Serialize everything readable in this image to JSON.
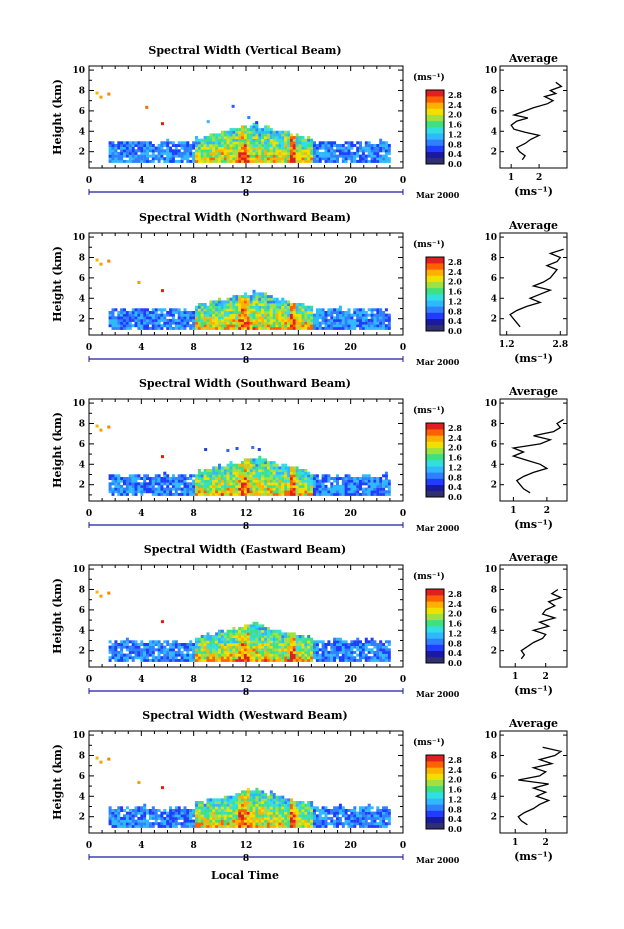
{
  "panels": [
    {
      "title": "Spectral Width (Vertical Beam)",
      "avg_ticks": [
        "1",
        "2"
      ],
      "avg_range": [
        0.6,
        3.0
      ],
      "avg_profile": [
        [
          1.4,
          1.2
        ],
        [
          1.5,
          1.6
        ],
        [
          1.3,
          2.0
        ],
        [
          1.2,
          2.4
        ],
        [
          1.5,
          2.8
        ],
        [
          1.7,
          3.2
        ],
        [
          2.0,
          3.6
        ],
        [
          1.5,
          3.9
        ],
        [
          1.1,
          4.2
        ],
        [
          1.0,
          4.6
        ],
        [
          1.2,
          5.0
        ],
        [
          1.6,
          5.3
        ],
        [
          1.1,
          5.6
        ],
        [
          1.5,
          6.0
        ],
        [
          1.8,
          6.3
        ],
        [
          2.3,
          6.7
        ],
        [
          2.5,
          7.0
        ],
        [
          2.2,
          7.4
        ],
        [
          2.6,
          7.7
        ],
        [
          2.4,
          8.0
        ],
        [
          2.8,
          8.4
        ],
        [
          2.6,
          8.8
        ]
      ],
      "events": [
        {
          "t": 0.5,
          "h": 7.6,
          "c": "#f5b800"
        },
        {
          "t": 0.8,
          "h": 7.2,
          "c": "#f5a000"
        },
        {
          "t": 1.4,
          "h": 7.5,
          "c": "#ff8000"
        },
        {
          "t": 4.3,
          "h": 6.2,
          "c": "#f07000"
        },
        {
          "t": 5.5,
          "h": 4.6,
          "c": "#e02000"
        },
        {
          "t": 10.9,
          "h": 6.3,
          "c": "#2060ff"
        },
        {
          "t": 12.1,
          "h": 5.2,
          "c": "#3080ff"
        },
        {
          "t": 12.7,
          "h": 4.7,
          "c": "#2040e0"
        },
        {
          "t": 9.0,
          "h": 4.8,
          "c": "#40b0ff"
        }
      ]
    },
    {
      "title": "Spectral Width (Northward Beam)",
      "avg_ticks": [
        "1.2",
        "2.8"
      ],
      "avg_range": [
        1.0,
        3.0
      ],
      "avg_profile": [
        [
          1.6,
          1.2
        ],
        [
          1.5,
          1.6
        ],
        [
          1.4,
          2.0
        ],
        [
          1.3,
          2.4
        ],
        [
          1.5,
          2.8
        ],
        [
          1.8,
          3.2
        ],
        [
          2.2,
          3.6
        ],
        [
          1.9,
          4.0
        ],
        [
          2.2,
          4.4
        ],
        [
          2.5,
          4.8
        ],
        [
          2.0,
          5.2
        ],
        [
          2.3,
          5.6
        ],
        [
          2.5,
          6.0
        ],
        [
          2.6,
          6.4
        ],
        [
          2.7,
          6.8
        ],
        [
          2.4,
          7.2
        ],
        [
          2.7,
          7.6
        ],
        [
          2.8,
          8.0
        ],
        [
          2.5,
          8.4
        ],
        [
          2.9,
          8.8
        ]
      ],
      "events": [
        {
          "t": 0.5,
          "h": 7.6,
          "c": "#f5b800"
        },
        {
          "t": 0.8,
          "h": 7.2,
          "c": "#f5a000"
        },
        {
          "t": 1.4,
          "h": 7.5,
          "c": "#ff8000"
        },
        {
          "t": 3.7,
          "h": 5.4,
          "c": "#f0a000"
        },
        {
          "t": 5.5,
          "h": 4.6,
          "c": "#e02000"
        }
      ]
    },
    {
      "title": "Spectral Width (Southward Beam)",
      "avg_ticks": [
        "1",
        "2"
      ],
      "avg_range": [
        0.6,
        2.6
      ],
      "avg_profile": [
        [
          1.5,
          1.2
        ],
        [
          1.3,
          1.6
        ],
        [
          1.2,
          2.0
        ],
        [
          1.1,
          2.4
        ],
        [
          1.3,
          2.8
        ],
        [
          1.6,
          3.2
        ],
        [
          2.0,
          3.6
        ],
        [
          1.8,
          4.0
        ],
        [
          1.4,
          4.4
        ],
        [
          1.0,
          4.8
        ],
        [
          1.3,
          5.2
        ],
        [
          1.0,
          5.6
        ],
        [
          1.8,
          6.0
        ],
        [
          2.1,
          6.4
        ],
        [
          1.6,
          6.8
        ],
        [
          2.2,
          7.2
        ],
        [
          2.4,
          7.6
        ],
        [
          2.3,
          8.0
        ],
        [
          2.5,
          8.4
        ]
      ],
      "events": [
        {
          "t": 0.5,
          "h": 7.6,
          "c": "#f5b800"
        },
        {
          "t": 0.8,
          "h": 7.2,
          "c": "#f5a000"
        },
        {
          "t": 1.4,
          "h": 7.5,
          "c": "#ff8000"
        },
        {
          "t": 5.5,
          "h": 4.6,
          "c": "#e02000"
        },
        {
          "t": 8.8,
          "h": 5.3,
          "c": "#2040e0"
        },
        {
          "t": 10.5,
          "h": 5.2,
          "c": "#3060ff"
        },
        {
          "t": 11.2,
          "h": 5.4,
          "c": "#2050ff"
        },
        {
          "t": 12.4,
          "h": 5.5,
          "c": "#3070ff"
        },
        {
          "t": 12.9,
          "h": 5.3,
          "c": "#2040e0"
        }
      ]
    },
    {
      "title": "Spectral Width (Eastward Beam)",
      "avg_ticks": [
        "1",
        "2"
      ],
      "avg_range": [
        0.5,
        2.7
      ],
      "avg_profile": [
        [
          1.2,
          1.2
        ],
        [
          1.3,
          1.6
        ],
        [
          1.2,
          2.0
        ],
        [
          1.4,
          2.4
        ],
        [
          1.6,
          2.8
        ],
        [
          1.9,
          3.2
        ],
        [
          2.0,
          3.6
        ],
        [
          1.6,
          4.0
        ],
        [
          2.1,
          4.4
        ],
        [
          1.8,
          4.8
        ],
        [
          2.3,
          5.2
        ],
        [
          1.9,
          5.6
        ],
        [
          2.0,
          6.0
        ],
        [
          2.3,
          6.4
        ],
        [
          2.1,
          6.8
        ],
        [
          2.5,
          7.2
        ],
        [
          2.2,
          7.6
        ],
        [
          2.4,
          8.0
        ]
      ],
      "events": [
        {
          "t": 0.5,
          "h": 7.6,
          "c": "#f5b800"
        },
        {
          "t": 0.8,
          "h": 7.2,
          "c": "#f5a000"
        },
        {
          "t": 1.4,
          "h": 7.5,
          "c": "#ff8000"
        },
        {
          "t": 5.5,
          "h": 4.7,
          "c": "#e02000"
        }
      ]
    },
    {
      "title": "Spectral Width (Westward Beam)",
      "avg_ticks": [
        "1",
        "2"
      ],
      "avg_range": [
        0.5,
        2.7
      ],
      "avg_profile": [
        [
          1.4,
          1.2
        ],
        [
          1.2,
          1.6
        ],
        [
          1.1,
          2.0
        ],
        [
          1.3,
          2.4
        ],
        [
          1.6,
          2.8
        ],
        [
          1.8,
          3.2
        ],
        [
          2.1,
          3.6
        ],
        [
          1.7,
          4.0
        ],
        [
          2.0,
          4.4
        ],
        [
          1.6,
          4.8
        ],
        [
          2.1,
          5.2
        ],
        [
          1.1,
          5.6
        ],
        [
          1.8,
          6.0
        ],
        [
          2.0,
          6.4
        ],
        [
          1.6,
          6.8
        ],
        [
          2.2,
          7.2
        ],
        [
          1.8,
          7.6
        ],
        [
          2.3,
          8.0
        ],
        [
          2.5,
          8.4
        ],
        [
          1.9,
          8.8
        ]
      ],
      "events": [
        {
          "t": 0.5,
          "h": 7.6,
          "c": "#f5b800"
        },
        {
          "t": 0.8,
          "h": 7.2,
          "c": "#f5a000"
        },
        {
          "t": 1.4,
          "h": 7.5,
          "c": "#ff8000"
        },
        {
          "t": 3.7,
          "h": 5.2,
          "c": "#f0a000"
        },
        {
          "t": 5.5,
          "h": 4.7,
          "c": "#e02000"
        }
      ]
    }
  ],
  "common": {
    "ylabel": "Height (km)",
    "avg_title": "Average",
    "avg_units": "(ms⁻¹)",
    "cb_units": "(ms⁻¹)",
    "date_label": "Mar 2000",
    "day_label": "8",
    "xlabel": "Local Time"
  },
  "chart_data": {
    "type": "heatmap",
    "x_ticks": [
      "0",
      "4",
      "8",
      "12",
      "16",
      "20",
      "0"
    ],
    "y_ticks": [
      "2",
      "4",
      "6",
      "8",
      "10"
    ],
    "ylim": [
      0.4,
      10.4
    ],
    "xlim": [
      0,
      24
    ],
    "colorbar_ticks": [
      "0.0",
      "0.4",
      "0.8",
      "1.2",
      "1.6",
      "2.0",
      "2.4",
      "2.8"
    ],
    "colorbar_range": [
      0.0,
      3.0
    ],
    "colormap": [
      "#303070",
      "#1a1aa0",
      "#1f3cff",
      "#2f80ff",
      "#30b8ff",
      "#30e0e0",
      "#40e080",
      "#a0e040",
      "#f0e000",
      "#ffb000",
      "#ff6000",
      "#e02020"
    ],
    "layer_top_km": 2.8,
    "convective_period_hours": [
      8,
      17
    ],
    "convective_top_km": 4.2,
    "avg_yticks": [
      "2",
      "4",
      "6",
      "8",
      "10"
    ],
    "avg_ylim": [
      0.4,
      10.4
    ]
  }
}
